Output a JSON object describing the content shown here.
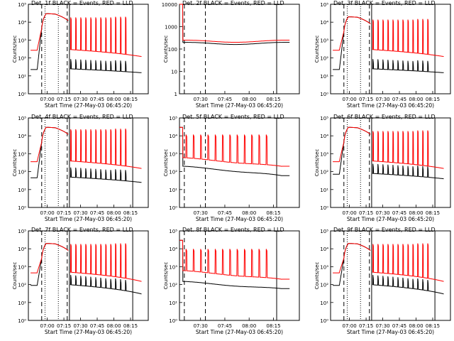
{
  "figure_title": "Count rate plots per detector",
  "line_colors": {
    "events": "#000000",
    "lld": "#ff0000"
  },
  "chart_data": [
    {
      "type": "line",
      "detector": "1f",
      "title": "Det. 1f BLACK = Events, RED = LLD",
      "xlabel": "Start Time (27-May-03 06:45:20)",
      "ylabel": "Counts/sec",
      "x_tick_labels": [
        "07:00",
        "07:15",
        "07:30",
        "07:45",
        "08:00",
        "08:15"
      ],
      "x_ticks_min": [
        15,
        30,
        45,
        60,
        75,
        90
      ],
      "xlim_min": [
        -2,
        106
      ],
      "y_tick_labels": [
        "10⁰",
        "10¹",
        "10²",
        "10³",
        "10⁴",
        "10⁵"
      ],
      "y_ticks": [
        1,
        10,
        100,
        1000,
        10000,
        100000
      ],
      "ylim": [
        1,
        100000
      ],
      "series": [
        {
          "name": "Events",
          "color": "#000000",
          "profile": "long",
          "peak": 30000,
          "base": 25,
          "post_decay_to": 15
        },
        {
          "name": "LLD",
          "color": "#ff0000",
          "profile": "long",
          "peak": 30000,
          "base": 300,
          "spike_peak": 20000,
          "post_decay_to": 120
        }
      ],
      "vlines": [
        {
          "t": 13,
          "style": "dotted"
        },
        {
          "t": 25,
          "style": "dotted"
        },
        {
          "t": 10,
          "style": "dashed"
        },
        {
          "t": 33,
          "style": "dashed"
        },
        {
          "t": 35,
          "style": "solid"
        },
        {
          "t": 92,
          "style": "solid"
        }
      ]
    },
    {
      "type": "line",
      "detector": "2f",
      "title": "Det. 2f BLACK = Events, RED = LLD",
      "xlabel": "Start Time (27-May-03 06:45:20)",
      "ylabel": "Counts/sec",
      "x_tick_labels": [
        "07:30",
        "07:45",
        "08:00",
        "08:15"
      ],
      "x_ticks_min": [
        45,
        60,
        75,
        90
      ],
      "xlim_min": [
        32,
        106
      ],
      "y_tick_labels": [
        "1",
        "10",
        "100",
        "1000",
        "10000"
      ],
      "y_ticks": [
        1,
        10,
        100,
        1000,
        10000
      ],
      "ylim": [
        1,
        10000
      ],
      "series": [
        {
          "name": "Events",
          "color": "#000000",
          "profile": "short",
          "peak": 10000,
          "base": 200,
          "post_decay_to": 200
        },
        {
          "name": "LLD",
          "color": "#ff0000",
          "profile": "short",
          "peak": 10000,
          "base": 250,
          "post_decay_to": 250
        }
      ],
      "vlines": [
        {
          "t": 35,
          "style": "dashed"
        },
        {
          "t": 48,
          "style": "dashed"
        },
        {
          "t": 92,
          "style": "solid"
        }
      ]
    },
    {
      "type": "line",
      "detector": "3f",
      "title": "Det. 3f BLACK = Events, RED = LLD",
      "xlabel": "Start Time (27-May-03 06:45:20)",
      "ylabel": "Counts/sec",
      "x_tick_labels": [
        "07:00",
        "07:15",
        "07:30",
        "07:45",
        "08:00",
        "08:15"
      ],
      "x_ticks_min": [
        15,
        30,
        45,
        60,
        75,
        90
      ],
      "xlim_min": [
        -2,
        106
      ],
      "y_tick_labels": [
        "10⁰",
        "10¹",
        "10²",
        "10³",
        "10⁴",
        "10⁵"
      ],
      "y_ticks": [
        1,
        10,
        100,
        1000,
        10000,
        100000
      ],
      "ylim": [
        1,
        100000
      ],
      "series": [
        {
          "name": "Events",
          "color": "#000000",
          "profile": "long",
          "peak": 20000,
          "base": 25,
          "post_decay_to": 15
        },
        {
          "name": "LLD",
          "color": "#ff0000",
          "profile": "long",
          "peak": 20000,
          "base": 300,
          "spike_peak": 15000,
          "post_decay_to": 120
        }
      ],
      "vlines": [
        {
          "t": 13,
          "style": "dotted"
        },
        {
          "t": 25,
          "style": "dotted"
        },
        {
          "t": 10,
          "style": "dashed"
        },
        {
          "t": 33,
          "style": "dashed"
        },
        {
          "t": 35,
          "style": "solid"
        },
        {
          "t": 92,
          "style": "solid"
        }
      ]
    },
    {
      "type": "line",
      "detector": "4f",
      "title": "Det. 4f BLACK = Events, RED = LLD",
      "xlabel": "Start Time (27-May-03 06:45:20)",
      "ylabel": "Counts/sec",
      "x_tick_labels": [
        "07:00",
        "07:15",
        "07:30",
        "07:45",
        "08:00",
        "08:15"
      ],
      "x_ticks_min": [
        15,
        30,
        45,
        60,
        75,
        90
      ],
      "xlim_min": [
        -2,
        106
      ],
      "y_tick_labels": [
        "10⁰",
        "10¹",
        "10²",
        "10³",
        "10⁴",
        "10⁵"
      ],
      "y_ticks": [
        1,
        10,
        100,
        1000,
        10000,
        100000
      ],
      "ylim": [
        1,
        100000
      ],
      "series": [
        {
          "name": "Events",
          "color": "#000000",
          "profile": "long",
          "peak": 30000,
          "base": 50,
          "post_decay_to": 25
        },
        {
          "name": "LLD",
          "color": "#ff0000",
          "profile": "long",
          "peak": 30000,
          "base": 400,
          "spike_peak": 25000,
          "post_decay_to": 150
        }
      ],
      "vlines": [
        {
          "t": 13,
          "style": "dotted"
        },
        {
          "t": 25,
          "style": "dotted"
        },
        {
          "t": 10,
          "style": "dashed"
        },
        {
          "t": 33,
          "style": "dashed"
        },
        {
          "t": 35,
          "style": "solid"
        },
        {
          "t": 92,
          "style": "solid"
        }
      ]
    },
    {
      "type": "line",
      "detector": "5f",
      "title": "Det. 5f BLACK = Events, RED = LLD",
      "xlabel": "Start Time (27-May-03 06:45:20)",
      "ylabel": "Counts/sec",
      "x_tick_labels": [
        "07:30",
        "07:45",
        "08:00",
        "08:15"
      ],
      "x_ticks_min": [
        45,
        60,
        75,
        90
      ],
      "xlim_min": [
        32,
        106
      ],
      "y_tick_labels": [
        "10⁰",
        "10¹",
        "10²",
        "10³",
        "10⁴",
        "10⁵"
      ],
      "y_ticks": [
        1,
        10,
        100,
        1000,
        10000,
        100000
      ],
      "ylim": [
        1,
        100000
      ],
      "series": [
        {
          "name": "Events",
          "color": "#000000",
          "profile": "short",
          "peak": 30000,
          "base": 200,
          "post_decay_to": 60
        },
        {
          "name": "LLD",
          "color": "#ff0000",
          "profile": "short",
          "peak": 30000,
          "base": 600,
          "spike_peak": 12000,
          "post_decay_to": 200
        }
      ],
      "vlines": [
        {
          "t": 35,
          "style": "dashed"
        },
        {
          "t": 48,
          "style": "dashed"
        },
        {
          "t": 92,
          "style": "solid"
        }
      ]
    },
    {
      "type": "line",
      "detector": "6f",
      "title": "Det. 6f BLACK = Events, RED = LLD",
      "xlabel": "Start Time (27-May-03 06:45:20)",
      "ylabel": "Counts/sec",
      "x_tick_labels": [
        "07:00",
        "07:15",
        "07:30",
        "07:45",
        "08:00",
        "08:15"
      ],
      "x_ticks_min": [
        15,
        30,
        45,
        60,
        75,
        90
      ],
      "xlim_min": [
        -2,
        106
      ],
      "y_tick_labels": [
        "10⁰",
        "10¹",
        "10²",
        "10³",
        "10⁴",
        "10⁵"
      ],
      "y_ticks": [
        1,
        10,
        100,
        1000,
        10000,
        100000
      ],
      "ylim": [
        1,
        100000
      ],
      "series": [
        {
          "name": "Events",
          "color": "#000000",
          "profile": "long",
          "peak": 30000,
          "base": 80,
          "post_decay_to": 40
        },
        {
          "name": "LLD",
          "color": "#ff0000",
          "profile": "long",
          "peak": 30000,
          "base": 400,
          "spike_peak": 20000,
          "post_decay_to": 150
        }
      ],
      "vlines": [
        {
          "t": 13,
          "style": "dotted"
        },
        {
          "t": 25,
          "style": "dotted"
        },
        {
          "t": 10,
          "style": "dashed"
        },
        {
          "t": 33,
          "style": "dashed"
        },
        {
          "t": 35,
          "style": "solid"
        },
        {
          "t": 92,
          "style": "solid"
        }
      ]
    },
    {
      "type": "line",
      "detector": "7f",
      "title": "Det. 7f BLACK = Events, RED = LLD",
      "xlabel": "Start Time (27-May-03 06:45:20)",
      "ylabel": "Counts/sec",
      "x_tick_labels": [
        "07:00",
        "07:15",
        "07:30",
        "07:45",
        "08:00",
        "08:15"
      ],
      "x_ticks_min": [
        15,
        30,
        45,
        60,
        75,
        90
      ],
      "xlim_min": [
        -2,
        106
      ],
      "y_tick_labels": [
        "10⁰",
        "10¹",
        "10²",
        "10³",
        "10⁴",
        "10⁵"
      ],
      "y_ticks": [
        1,
        10,
        100,
        1000,
        10000,
        100000
      ],
      "ylim": [
        1,
        100000
      ],
      "series": [
        {
          "name": "Events",
          "color": "#000000",
          "profile": "long",
          "peak": 20000,
          "base": 100,
          "post_decay_to": 30
        },
        {
          "name": "LLD",
          "color": "#ff0000",
          "profile": "long",
          "peak": 20000,
          "base": 500,
          "spike_peak": 20000,
          "post_decay_to": 150
        }
      ],
      "vlines": [
        {
          "t": 13,
          "style": "dotted"
        },
        {
          "t": 25,
          "style": "dotted"
        },
        {
          "t": 10,
          "style": "dashed"
        },
        {
          "t": 33,
          "style": "dashed"
        },
        {
          "t": 35,
          "style": "solid"
        },
        {
          "t": 92,
          "style": "solid"
        }
      ]
    },
    {
      "type": "line",
      "detector": "8f",
      "title": "Det. 8f BLACK = Events, RED = LLD",
      "xlabel": "Start Time (27-May-03 06:45:20)",
      "ylabel": "Counts/sec",
      "x_tick_labels": [
        "07:30",
        "07:45",
        "08:00",
        "08:15"
      ],
      "x_ticks_min": [
        45,
        60,
        75,
        90
      ],
      "xlim_min": [
        32,
        106
      ],
      "y_tick_labels": [
        "10⁰",
        "10¹",
        "10²",
        "10³",
        "10⁴",
        "10⁵"
      ],
      "y_ticks": [
        1,
        10,
        100,
        1000,
        10000,
        100000
      ],
      "ylim": [
        1,
        100000
      ],
      "series": [
        {
          "name": "Events",
          "color": "#000000",
          "profile": "short",
          "peak": 30000,
          "base": 150,
          "post_decay_to": 60
        },
        {
          "name": "LLD",
          "color": "#ff0000",
          "profile": "short",
          "peak": 30000,
          "base": 600,
          "spike_peak": 10000,
          "post_decay_to": 200
        }
      ],
      "vlines": [
        {
          "t": 35,
          "style": "dashed"
        },
        {
          "t": 48,
          "style": "dashed"
        },
        {
          "t": 92,
          "style": "solid"
        }
      ]
    },
    {
      "type": "line",
      "detector": "9f",
      "title": "Det. 9f BLACK = Events, RED = LLD",
      "xlabel": "Start Time (27-May-03 06:45:20)",
      "ylabel": "Counts/sec",
      "x_tick_labels": [
        "07:00",
        "07:15",
        "07:30",
        "07:45",
        "08:00",
        "08:15"
      ],
      "x_ticks_min": [
        15,
        30,
        45,
        60,
        75,
        90
      ],
      "xlim_min": [
        -2,
        106
      ],
      "y_tick_labels": [
        "10⁰",
        "10¹",
        "10²",
        "10³",
        "10⁴",
        "10⁵"
      ],
      "y_ticks": [
        1,
        10,
        100,
        1000,
        10000,
        100000
      ],
      "ylim": [
        1,
        100000
      ],
      "series": [
        {
          "name": "Events",
          "color": "#000000",
          "profile": "long",
          "peak": 20000,
          "base": 100,
          "post_decay_to": 30
        },
        {
          "name": "LLD",
          "color": "#ff0000",
          "profile": "long",
          "peak": 20000,
          "base": 500,
          "spike_peak": 20000,
          "post_decay_to": 150
        }
      ],
      "vlines": [
        {
          "t": 13,
          "style": "dotted"
        },
        {
          "t": 25,
          "style": "dotted"
        },
        {
          "t": 10,
          "style": "dashed"
        },
        {
          "t": 33,
          "style": "dashed"
        },
        {
          "t": 35,
          "style": "solid"
        },
        {
          "t": 92,
          "style": "solid"
        }
      ]
    }
  ]
}
